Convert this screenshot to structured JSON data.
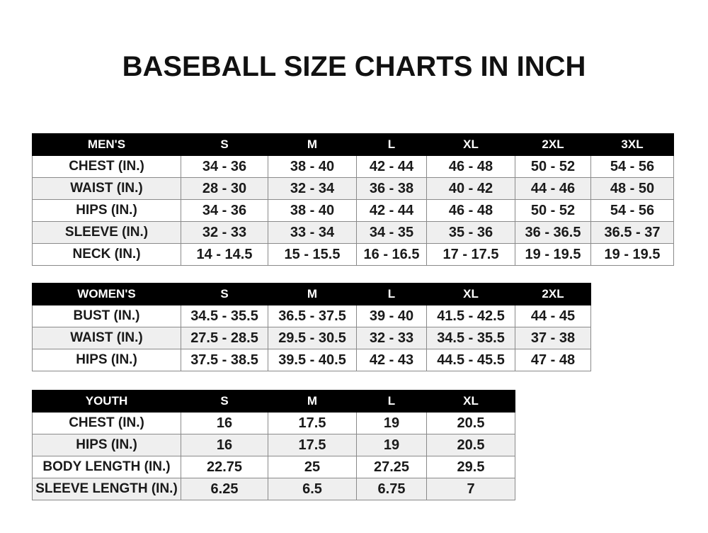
{
  "title": "BASEBALL SIZE CHARTS IN INCH",
  "tables": [
    {
      "name": "mens",
      "headers": [
        "MEN'S",
        "S",
        "M",
        "L",
        "XL",
        "2XL",
        "3XL"
      ],
      "rows": [
        [
          "CHEST (IN.)",
          "34 - 36",
          "38 - 40",
          "42 - 44",
          "46 - 48",
          "50 - 52",
          "54 - 56"
        ],
        [
          "WAIST (IN.)",
          "28 - 30",
          "32 - 34",
          "36 - 38",
          "40 - 42",
          "44 - 46",
          "48 - 50"
        ],
        [
          "HIPS (IN.)",
          "34 - 36",
          "38 - 40",
          "42 - 44",
          "46 - 48",
          "50 - 52",
          "54 - 56"
        ],
        [
          "SLEEVE (IN.)",
          "32 - 33",
          "33 - 34",
          "34 - 35",
          "35 - 36",
          "36 - 36.5",
          "36.5 - 37"
        ],
        [
          "NECK (IN.)",
          "14 - 14.5",
          "15 - 15.5",
          "16 - 16.5",
          "17 - 17.5",
          "19 - 19.5",
          "19 - 19.5"
        ]
      ]
    },
    {
      "name": "womens",
      "headers": [
        "WOMEN'S",
        "S",
        "M",
        "L",
        "XL",
        "2XL"
      ],
      "rows": [
        [
          "BUST (IN.)",
          "34.5 - 35.5",
          "36.5 - 37.5",
          "39 - 40",
          "41.5 - 42.5",
          "44 - 45"
        ],
        [
          "WAIST (IN.)",
          "27.5 - 28.5",
          "29.5 - 30.5",
          "32 - 33",
          "34.5 - 35.5",
          "37 - 38"
        ],
        [
          "HIPS (IN.)",
          "37.5 - 38.5",
          "39.5 - 40.5",
          "42 - 43",
          "44.5 - 45.5",
          "47 - 48"
        ]
      ]
    },
    {
      "name": "youth",
      "headers": [
        "YOUTH",
        "S",
        "M",
        "L",
        "XL"
      ],
      "rows": [
        [
          "CHEST (IN.)",
          "16",
          "17.5",
          "19",
          "20.5"
        ],
        [
          "HIPS (IN.)",
          "16",
          "17.5",
          "19",
          "20.5"
        ],
        [
          "BODY LENGTH (IN.)",
          "22.75",
          "25",
          "27.25",
          "29.5"
        ],
        [
          "SLEEVE LENGTH (IN.)",
          "6.25",
          "6.5",
          "6.75",
          "7"
        ]
      ]
    }
  ]
}
